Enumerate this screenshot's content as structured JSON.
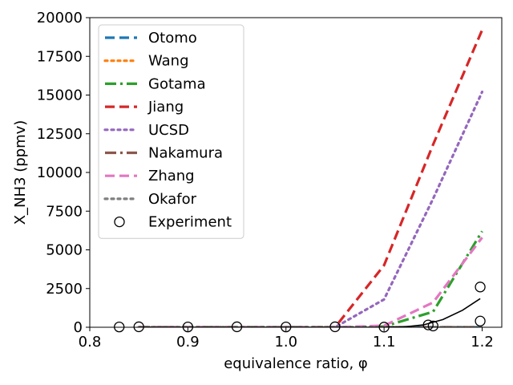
{
  "chart_data": {
    "type": "line",
    "xlabel": "equivalence ratio, φ",
    "ylabel": "X_NH3 (ppmv)",
    "xlim": [
      0.8,
      1.22
    ],
    "ylim": [
      0,
      20000
    ],
    "xticks": [
      0.8,
      0.9,
      1.0,
      1.1,
      1.2
    ],
    "xtick_labels": [
      "0.8",
      "0.9",
      "1.0",
      "1.1",
      "1.2"
    ],
    "yticks": [
      0,
      2500,
      5000,
      7500,
      10000,
      12500,
      15000,
      17500,
      20000
    ],
    "ytick_labels": [
      "0",
      "2500",
      "5000",
      "7500",
      "10000",
      "12500",
      "15000",
      "17500",
      "20000"
    ],
    "grid": false,
    "legend_position": "top-left",
    "series": [
      {
        "name": "Otomo",
        "color": "#1f77b4",
        "style": "dashed",
        "x": [
          0.85,
          0.9,
          0.95,
          1.0,
          1.05,
          1.1,
          1.15,
          1.2
        ],
        "y": [
          0,
          0,
          0,
          0,
          0,
          0,
          0,
          0
        ]
      },
      {
        "name": "Wang",
        "color": "#ff7f0e",
        "style": "dotted",
        "x": [
          0.85,
          0.9,
          0.95,
          1.0,
          1.05,
          1.1,
          1.15,
          1.2
        ],
        "y": [
          0,
          0,
          0,
          0,
          0,
          0,
          0,
          0
        ]
      },
      {
        "name": "Gotama",
        "color": "#2ca02c",
        "style": "dashdot",
        "x": [
          0.85,
          0.9,
          0.95,
          1.0,
          1.05,
          1.1,
          1.15,
          1.2
        ],
        "y": [
          0,
          0,
          0,
          0,
          0,
          50,
          1000,
          6200
        ]
      },
      {
        "name": "Jiang",
        "color": "#d62728",
        "style": "dashed",
        "x": [
          0.85,
          0.9,
          0.95,
          1.0,
          1.05,
          1.1,
          1.15,
          1.2
        ],
        "y": [
          0,
          0,
          0,
          0,
          0,
          4000,
          11800,
          19200
        ]
      },
      {
        "name": "UCSD",
        "color": "#9467bd",
        "style": "dotted",
        "x": [
          0.85,
          0.9,
          0.95,
          1.0,
          1.05,
          1.1,
          1.15,
          1.2
        ],
        "y": [
          0,
          0,
          0,
          0,
          0,
          1800,
          8300,
          15200
        ]
      },
      {
        "name": "Nakamura",
        "color": "#8c564b",
        "style": "dashdot",
        "x": [
          0.85,
          0.9,
          0.95,
          1.0,
          1.05,
          1.1,
          1.15,
          1.2
        ],
        "y": [
          0,
          0,
          0,
          0,
          0,
          0,
          0,
          0
        ]
      },
      {
        "name": "Zhang",
        "color": "#e377c2",
        "style": "dashed",
        "x": [
          0.85,
          0.9,
          0.95,
          1.0,
          1.05,
          1.1,
          1.15,
          1.2
        ],
        "y": [
          0,
          0,
          0,
          0,
          0,
          100,
          1600,
          5800
        ]
      },
      {
        "name": "Okafor",
        "color": "#7f7f7f",
        "style": "dotted",
        "x": [
          0.85,
          0.9,
          0.95,
          1.0,
          1.05,
          1.1,
          1.15,
          1.2
        ],
        "y": [
          0,
          0,
          0,
          0,
          0,
          0,
          0,
          0
        ]
      }
    ],
    "experiment": {
      "name": "Experiment",
      "x": [
        0.83,
        0.85,
        0.9,
        0.95,
        1.0,
        1.05,
        1.1,
        1.145,
        1.15,
        1.198,
        1.198
      ],
      "y": [
        20,
        30,
        20,
        30,
        20,
        30,
        10,
        150,
        80,
        2600,
        400
      ]
    },
    "fit_curve": {
      "color": "#000000",
      "x": [
        0.85,
        0.9,
        0.95,
        1.0,
        1.05,
        1.1,
        1.12,
        1.14,
        1.16,
        1.18,
        1.198
      ],
      "y": [
        0,
        0,
        0,
        0,
        0,
        0,
        20,
        150,
        500,
        1100,
        1850
      ]
    }
  }
}
